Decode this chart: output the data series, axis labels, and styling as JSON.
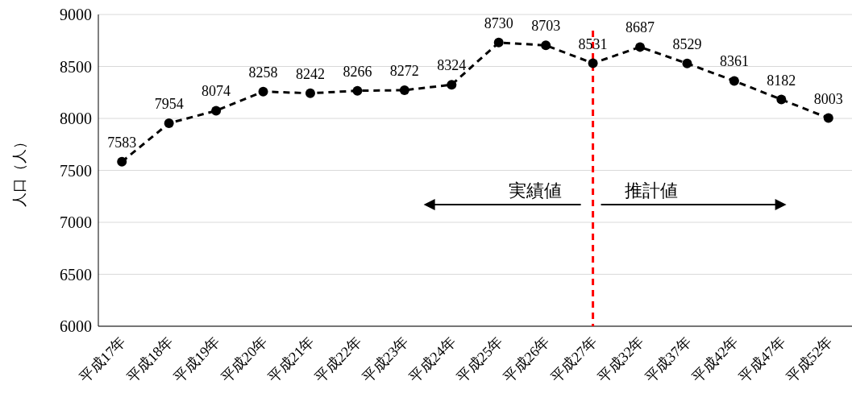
{
  "chart_data": {
    "type": "line",
    "ylabel": "人口（人）",
    "categories": [
      "平成17年",
      "平成18年",
      "平成19年",
      "平成20年",
      "平成21年",
      "平成22年",
      "平成23年",
      "平成24年",
      "平成25年",
      "平成26年",
      "平成27年",
      "平成32年",
      "平成37年",
      "平成42年",
      "平成47年",
      "平成52年"
    ],
    "series": [
      {
        "color": "#000000",
        "values": [
          7583,
          7954,
          8074,
          8258,
          8242,
          8266,
          8272,
          8324,
          8730,
          8703,
          8531,
          8687,
          8529,
          8361,
          8182,
          8003
        ]
      }
    ],
    "ylim": [
      6000,
      9000
    ],
    "yticks": [
      6000,
      6500,
      7000,
      7500,
      8000,
      8500,
      9000
    ],
    "grid": "y",
    "marker": "circle",
    "line_style": "dashed",
    "data_labels": true,
    "ref_lines": [
      {
        "axis": "x",
        "value": "平成27年",
        "color": "#ff0000",
        "line_style": "dashed"
      }
    ],
    "annotations": [
      "実績値",
      "推計値"
    ]
  }
}
